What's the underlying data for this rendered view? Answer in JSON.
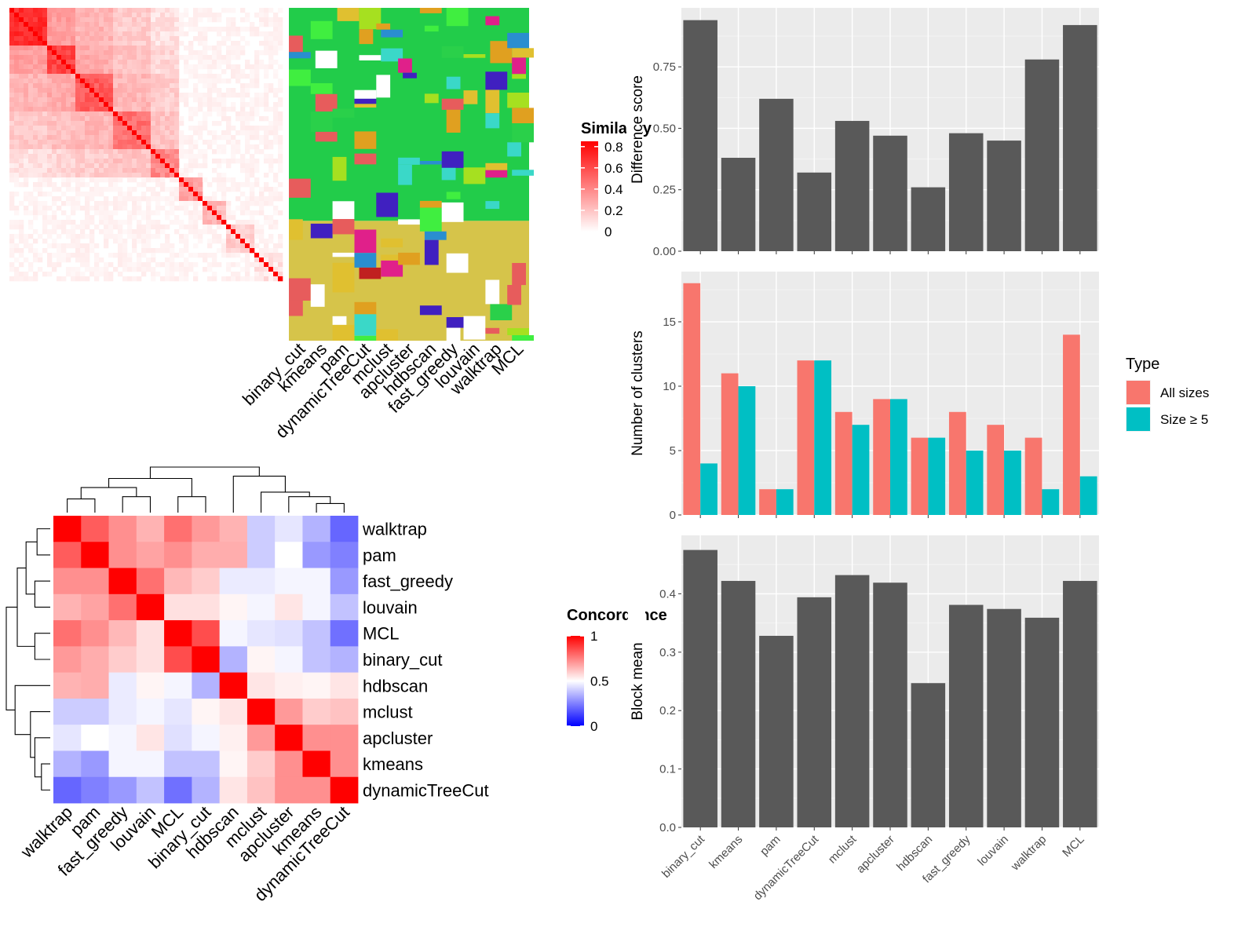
{
  "methods": [
    "binary_cut",
    "kmeans",
    "pam",
    "dynamicTreeCut",
    "mclust",
    "apcluster",
    "hdbscan",
    "fast_greedy",
    "louvain",
    "walktrap",
    "MCL"
  ],
  "similarity_legend": {
    "title": "Similarity",
    "ticks": [
      "0.8",
      "0.6",
      "0.4",
      "0.2",
      "0"
    ],
    "colors": [
      "#ffffff",
      "#ff0000"
    ]
  },
  "concordance_legend": {
    "title": "Concordance",
    "ticks": [
      "1",
      "0.5",
      "0"
    ],
    "colors": [
      "#0000ff",
      "#ffffff",
      "#ff0000"
    ]
  },
  "heatmap_order": [
    "walktrap",
    "pam",
    "fast_greedy",
    "louvain",
    "MCL",
    "binary_cut",
    "hdbscan",
    "mclust",
    "apcluster",
    "kmeans",
    "dynamicTreeCut"
  ],
  "chart_data": [
    {
      "type": "heatmap",
      "rows": [
        "walktrap",
        "pam",
        "fast_greedy",
        "louvain",
        "MCL",
        "binary_cut",
        "hdbscan",
        "mclust",
        "apcluster",
        "kmeans",
        "dynamicTreeCut"
      ],
      "cols": [
        "walktrap",
        "pam",
        "fast_greedy",
        "louvain",
        "MCL",
        "binary_cut",
        "hdbscan",
        "mclust",
        "apcluster",
        "kmeans",
        "dynamicTreeCut"
      ],
      "values": [
        [
          1.0,
          0.82,
          0.72,
          0.65,
          0.78,
          0.7,
          0.65,
          0.4,
          0.45,
          0.35,
          0.2
        ],
        [
          0.82,
          1.0,
          0.72,
          0.68,
          0.72,
          0.66,
          0.66,
          0.4,
          0.5,
          0.3,
          0.25
        ],
        [
          0.72,
          0.72,
          1.0,
          0.78,
          0.64,
          0.6,
          0.46,
          0.46,
          0.48,
          0.48,
          0.3
        ],
        [
          0.65,
          0.68,
          0.78,
          1.0,
          0.56,
          0.56,
          0.52,
          0.48,
          0.55,
          0.48,
          0.38
        ],
        [
          0.78,
          0.72,
          0.64,
          0.56,
          1.0,
          0.85,
          0.48,
          0.45,
          0.44,
          0.38,
          0.22
        ],
        [
          0.7,
          0.66,
          0.6,
          0.56,
          0.85,
          1.0,
          0.35,
          0.52,
          0.48,
          0.38,
          0.35
        ],
        [
          0.65,
          0.66,
          0.46,
          0.52,
          0.48,
          0.35,
          1.0,
          0.55,
          0.53,
          0.52,
          0.55
        ],
        [
          0.4,
          0.4,
          0.46,
          0.48,
          0.45,
          0.52,
          0.55,
          1.0,
          0.7,
          0.6,
          0.62
        ],
        [
          0.45,
          0.5,
          0.48,
          0.55,
          0.44,
          0.48,
          0.53,
          0.7,
          1.0,
          0.72,
          0.72
        ],
        [
          0.35,
          0.3,
          0.48,
          0.48,
          0.38,
          0.38,
          0.52,
          0.6,
          0.72,
          1.0,
          0.72
        ],
        [
          0.2,
          0.25,
          0.3,
          0.38,
          0.22,
          0.35,
          0.55,
          0.62,
          0.72,
          0.72,
          1.0
        ]
      ],
      "legend_title": "Concordance",
      "range": [
        0,
        1
      ]
    },
    {
      "type": "bar",
      "categories": [
        "binary_cut",
        "kmeans",
        "pam",
        "dynamicTreeCut",
        "mclust",
        "apcluster",
        "hdbscan",
        "fast_greedy",
        "louvain",
        "walktrap",
        "MCL"
      ],
      "values": [
        0.94,
        0.38,
        0.62,
        0.32,
        0.53,
        0.47,
        0.26,
        0.48,
        0.45,
        0.78,
        0.92
      ],
      "ylabel": "Difference score",
      "ylim": [
        0,
        0.99
      ],
      "yticks": [
        0,
        0.25,
        0.5,
        0.75
      ],
      "ytick_labels": [
        "0.00",
        "0.25",
        "0.50",
        "0.75"
      ],
      "grid": true
    },
    {
      "type": "bar",
      "categories": [
        "binary_cut",
        "kmeans",
        "pam",
        "dynamicTreeCut",
        "mclust",
        "apcluster",
        "hdbscan",
        "fast_greedy",
        "louvain",
        "walktrap",
        "MCL"
      ],
      "series": [
        {
          "name": "All sizes",
          "values": [
            18,
            11,
            2,
            12,
            8,
            9,
            6,
            8,
            7,
            6,
            14
          ],
          "color": "#F8766D"
        },
        {
          "name": "Size ≥ 5",
          "values": [
            4,
            10,
            2,
            12,
            7,
            9,
            6,
            5,
            5,
            2,
            3
          ],
          "color": "#00BFC4"
        }
      ],
      "ylabel": "Number of clusters",
      "ylim": [
        0,
        18.9
      ],
      "yticks": [
        0,
        5,
        10,
        15
      ],
      "ytick_labels": [
        "0",
        "5",
        "10",
        "15"
      ],
      "legend_title": "Type",
      "legend_position": "right",
      "grid": true
    },
    {
      "type": "bar",
      "categories": [
        "binary_cut",
        "kmeans",
        "pam",
        "dynamicTreeCut",
        "mclust",
        "apcluster",
        "hdbscan",
        "fast_greedy",
        "louvain",
        "walktrap",
        "MCL"
      ],
      "values": [
        0.475,
        0.422,
        0.328,
        0.394,
        0.432,
        0.419,
        0.247,
        0.381,
        0.374,
        0.359,
        0.422
      ],
      "ylabel": "Block mean",
      "ylim": [
        0,
        0.5
      ],
      "yticks": [
        0,
        0.1,
        0.2,
        0.3,
        0.4
      ],
      "ytick_labels": [
        "0.0",
        "0.1",
        "0.2",
        "0.3",
        "0.4"
      ],
      "grid": true
    }
  ]
}
